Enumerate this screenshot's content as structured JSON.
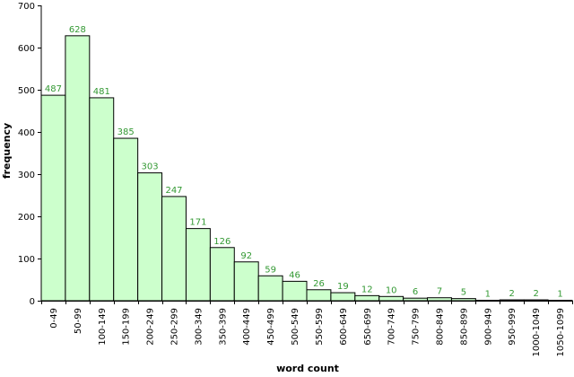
{
  "chart_data": {
    "type": "bar",
    "xlabel": "word count",
    "ylabel": "frequency",
    "ylim": [
      0,
      700
    ],
    "yticks": [
      "0",
      "100",
      "200",
      "300",
      "400",
      "500",
      "600",
      "700"
    ],
    "grid": false,
    "categories": [
      "0-49",
      "50-99",
      "100-149",
      "150-199",
      "200-249",
      "250-299",
      "300-349",
      "350-399",
      "400-449",
      "450-499",
      "500-549",
      "550-599",
      "600-649",
      "650-699",
      "700-749",
      "750-799",
      "800-849",
      "850-899",
      "900-949",
      "950-999",
      "1000-1049",
      "1050-1099"
    ],
    "values": [
      487,
      628,
      481,
      385,
      303,
      247,
      171,
      126,
      92,
      59,
      46,
      26,
      19,
      12,
      10,
      6,
      7,
      5,
      1,
      2,
      2,
      1
    ],
    "value_labels": [
      "487",
      "628",
      "481",
      "385",
      "303",
      "247",
      "171",
      "126",
      "92",
      "59",
      "46",
      "26",
      "19",
      "12",
      "10",
      "6",
      "7",
      "5",
      "1",
      "2",
      "2",
      "1"
    ],
    "colors": {
      "bar_fill": "#ccffcc",
      "bar_stroke": "#000000",
      "value_label": "#339933",
      "axis": "#000000"
    }
  }
}
